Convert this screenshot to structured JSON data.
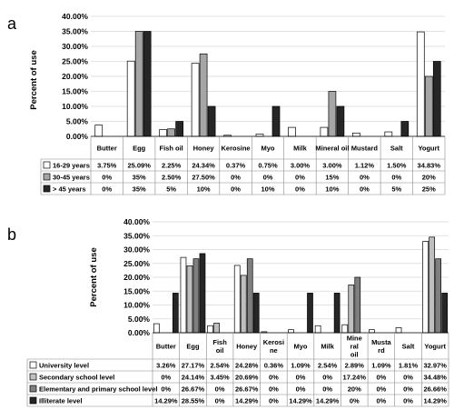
{
  "chart_data": [
    {
      "panel": "a",
      "type": "bar",
      "title": "",
      "xlabel": "",
      "ylabel": "Percent of use",
      "ylim": [
        0,
        40
      ],
      "yticks": [
        "0.00%",
        "5.00%",
        "10.00%",
        "15.00%",
        "20.00%",
        "25.00%",
        "30.00%",
        "35.00%",
        "40.00%"
      ],
      "categories": [
        "Butter",
        "Egg",
        "Fish oil",
        "Honey",
        "Kerosine",
        "Myo",
        "Milk",
        "Mineral oil",
        "Mustard",
        "Salt",
        "Yogurt"
      ],
      "series": [
        {
          "name": "16-29 years",
          "values": [
            3.75,
            25.09,
            2.25,
            24.34,
            0.37,
            0.75,
            3.0,
            3.0,
            1.12,
            1.5,
            34.83
          ],
          "labels": [
            "3.75%",
            "25.09%",
            "2.25%",
            "24.34%",
            "0.37%",
            "0.75%",
            "3.00%",
            "3.00%",
            "1.12%",
            "1.50%",
            "34.83%"
          ],
          "fill": "#ffffff"
        },
        {
          "name": "30-45 years",
          "values": [
            0,
            35,
            2.5,
            27.5,
            0,
            0,
            0,
            15,
            0,
            0,
            20
          ],
          "labels": [
            "0%",
            "35%",
            "2.50%",
            "27.50%",
            "0%",
            "0%",
            "0%",
            "15%",
            "0%",
            "0%",
            "20%"
          ],
          "fill": "#a6a6a6"
        },
        {
          "name": "> 45 years",
          "values": [
            0,
            35,
            5,
            10,
            0,
            10,
            0,
            10,
            0,
            5,
            25
          ],
          "labels": [
            "0%",
            "35%",
            "5%",
            "10%",
            "0%",
            "10%",
            "0%",
            "10%",
            "0%",
            "5%",
            "25%"
          ],
          "fill": "#262626"
        }
      ],
      "grid": true,
      "legend": "data-table"
    },
    {
      "panel": "b",
      "type": "bar",
      "title": "",
      "xlabel": "",
      "ylabel": "Percent of use",
      "ylim": [
        0,
        40
      ],
      "yticks": [
        "0.00%",
        "5.00%",
        "10.00%",
        "15.00%",
        "20.00%",
        "25.00%",
        "30.00%",
        "35.00%",
        "40.00%"
      ],
      "categories": [
        "Butter",
        "Egg",
        "Fish oil",
        "Honey",
        "Kerosi ne",
        "Myo",
        "Milk",
        "Mine ral oil",
        "Musta rd",
        "Salt",
        "Yogurt"
      ],
      "series": [
        {
          "name": "University level",
          "values": [
            3.26,
            27.17,
            2.54,
            24.28,
            0.36,
            1.09,
            2.54,
            2.89,
            1.09,
            1.81,
            32.97
          ],
          "labels": [
            "3.26%",
            "27.17%",
            "2.54%",
            "24.28%",
            "0.36%",
            "1.09%",
            "2.54%",
            "2.89%",
            "1.09%",
            "1.81%",
            "32.97%"
          ],
          "fill": "#ffffff"
        },
        {
          "name": "Secondary school level",
          "values": [
            0,
            24.14,
            3.45,
            20.69,
            0,
            0,
            0,
            17.24,
            0,
            0,
            34.48
          ],
          "labels": [
            "0%",
            "24.14%",
            "3.45%",
            "20.69%",
            "0%",
            "0%",
            "0%",
            "17.24%",
            "0%",
            "0%",
            "34.48%"
          ],
          "fill": "#bfbfbf"
        },
        {
          "name": "Elementary and primary school level",
          "values": [
            0,
            26.67,
            0,
            26.67,
            0,
            0,
            0,
            20,
            0,
            0,
            26.66
          ],
          "labels": [
            "0%",
            "26.67%",
            "0%",
            "26.67%",
            "0%",
            "0%",
            "0%",
            "20%",
            "0%",
            "0%",
            "26.66%"
          ],
          "fill": "#7f7f7f"
        },
        {
          "name": "Illiterate level",
          "values": [
            14.29,
            28.55,
            0,
            14.29,
            0,
            14.29,
            14.29,
            0,
            0,
            0,
            14.29
          ],
          "labels": [
            "14.29%",
            "28.55%",
            "0%",
            "14.29%",
            "0%",
            "14.29%",
            "14.29%",
            "0%",
            "0%",
            "0%",
            "14.29%"
          ],
          "fill": "#262626"
        }
      ],
      "grid": true,
      "legend": "data-table"
    }
  ]
}
